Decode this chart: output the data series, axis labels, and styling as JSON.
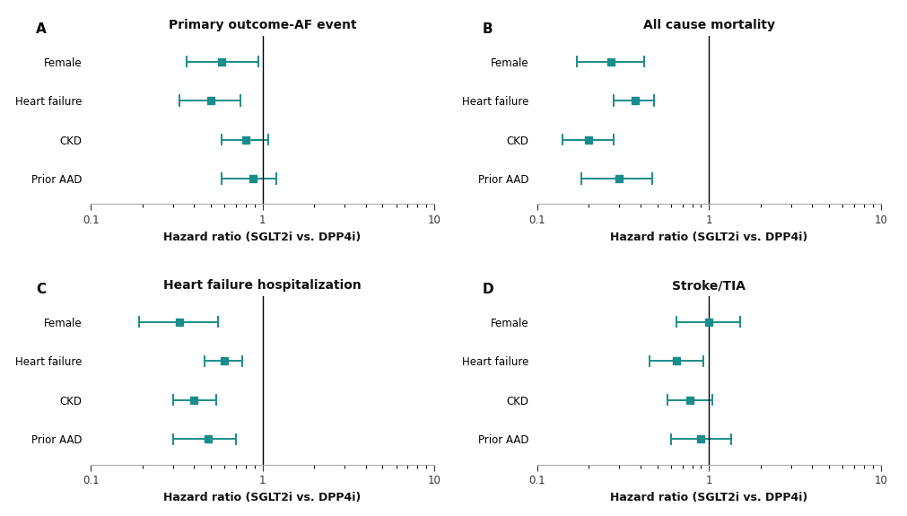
{
  "panels": [
    {
      "label": "A",
      "title": "Primary outcome-AF event",
      "categories": [
        "Female",
        "Heart failure",
        "CKD",
        "Prior AAD"
      ],
      "hr": [
        0.58,
        0.5,
        0.8,
        0.88
      ],
      "ci_lo": [
        0.36,
        0.33,
        0.58,
        0.58
      ],
      "ci_hi": [
        0.95,
        0.74,
        1.08,
        1.2
      ],
      "vline": 1.0
    },
    {
      "label": "B",
      "title": "All cause mortality",
      "categories": [
        "Female",
        "Heart failure",
        "CKD",
        "Prior AAD"
      ],
      "hr": [
        0.27,
        0.37,
        0.2,
        0.3
      ],
      "ci_lo": [
        0.17,
        0.28,
        0.14,
        0.18
      ],
      "ci_hi": [
        0.42,
        0.48,
        0.28,
        0.47
      ],
      "vline": 1.0
    },
    {
      "label": "C",
      "title": "Heart failure hospitalization",
      "categories": [
        "Female",
        "Heart failure",
        "CKD",
        "Prior AAD"
      ],
      "hr": [
        0.33,
        0.6,
        0.4,
        0.48
      ],
      "ci_lo": [
        0.19,
        0.46,
        0.3,
        0.3
      ],
      "ci_hi": [
        0.55,
        0.76,
        0.54,
        0.7
      ],
      "vline": 1.0
    },
    {
      "label": "D",
      "title": "Stroke/TIA",
      "categories": [
        "Female",
        "Heart failure",
        "CKD",
        "Prior AAD"
      ],
      "hr": [
        1.0,
        0.65,
        0.77,
        0.9
      ],
      "ci_lo": [
        0.65,
        0.45,
        0.57,
        0.6
      ],
      "ci_hi": [
        1.52,
        0.93,
        1.04,
        1.35
      ],
      "vline": 1.0
    }
  ],
  "marker_color": "#1a8c8c",
  "line_color": "#1a8c8c",
  "vline_color": "#000000",
  "xlabel": "Hazard ratio (SGLT2i vs. DPP4i)",
  "background_color": "#ffffff",
  "spine_color": "#aaaaaa",
  "title_fontsize": 10,
  "tick_fontsize": 8.5,
  "xlabel_fontsize": 9,
  "panel_label_fontsize": 11,
  "marker_size": 6,
  "marker_style": "s",
  "cap_size": 0.13,
  "linewidth": 1.4
}
